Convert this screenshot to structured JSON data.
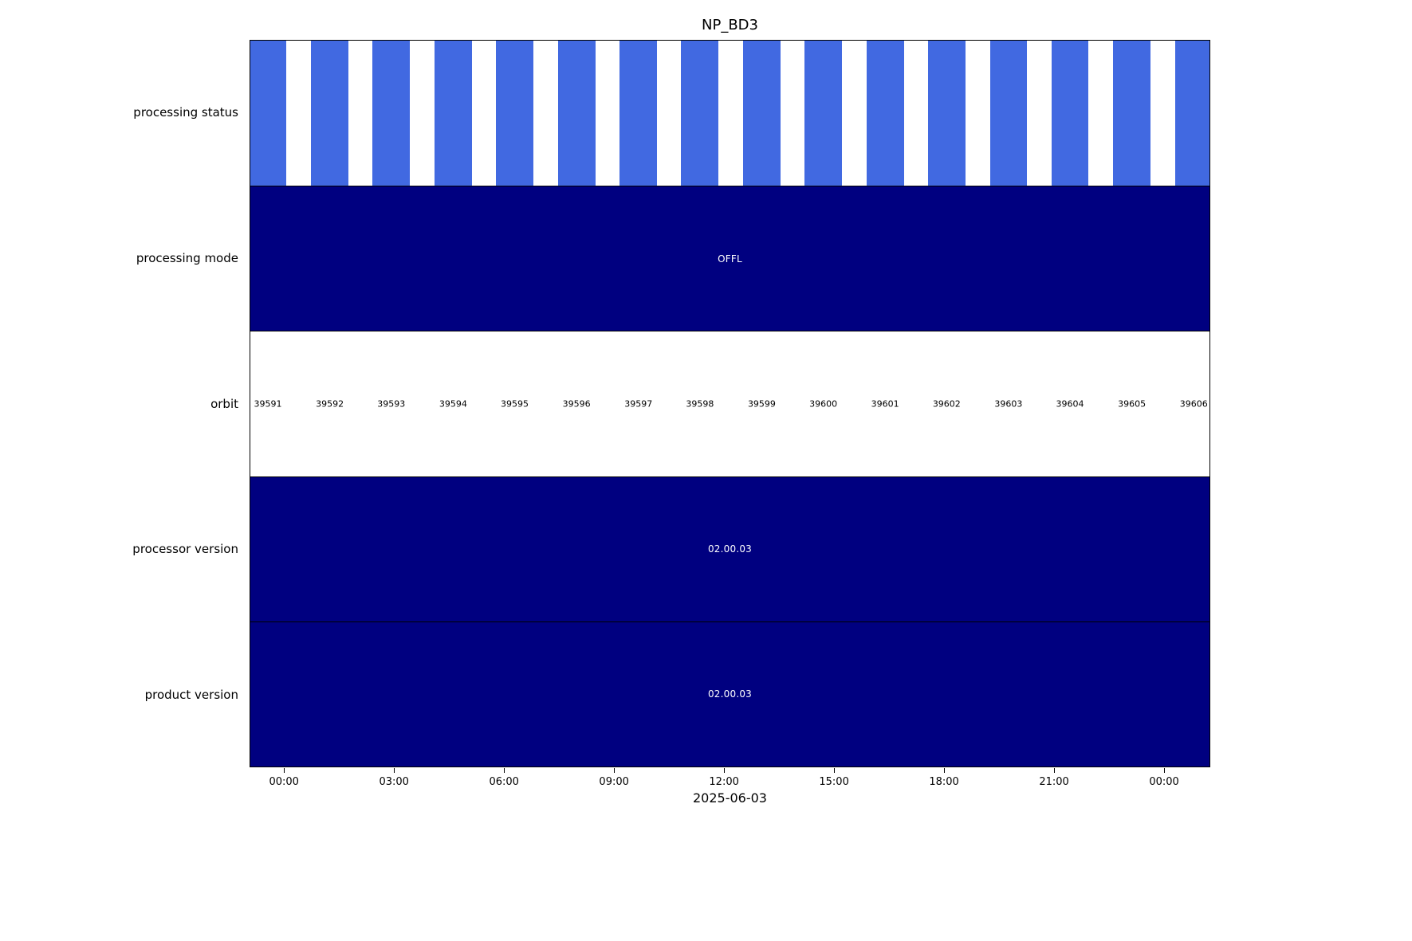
{
  "chart_data": {
    "type": "bar",
    "subtype": "timeline-status",
    "title": "NP_BD3",
    "xlabel": "2025-06-03",
    "time_domain_hours": [
      -0.94,
      25.26
    ],
    "x_ticks": [
      {
        "hour": 0,
        "label": "00:00"
      },
      {
        "hour": 3,
        "label": "03:00"
      },
      {
        "hour": 6,
        "label": "06:00"
      },
      {
        "hour": 9,
        "label": "09:00"
      },
      {
        "hour": 12,
        "label": "12:00"
      },
      {
        "hour": 15,
        "label": "15:00"
      },
      {
        "hour": 18,
        "label": "18:00"
      },
      {
        "hour": 21,
        "label": "21:00"
      },
      {
        "hour": 24,
        "label": "00:00"
      }
    ],
    "rows": [
      {
        "label": "processing status",
        "type": "bars"
      },
      {
        "label": "processing mode",
        "type": "solid",
        "value": "OFFL"
      },
      {
        "label": "orbit",
        "type": "orbit-labels"
      },
      {
        "label": "processor version",
        "type": "solid",
        "value": "02.00.03"
      },
      {
        "label": "product version",
        "type": "solid",
        "value": "02.00.03"
      }
    ],
    "orbits": [
      {
        "number": 39591,
        "center_hour": -0.46
      },
      {
        "number": 39592,
        "center_hour": 1.23
      },
      {
        "number": 39593,
        "center_hour": 2.91
      },
      {
        "number": 39594,
        "center_hour": 4.6
      },
      {
        "number": 39595,
        "center_hour": 6.28
      },
      {
        "number": 39596,
        "center_hour": 7.97
      },
      {
        "number": 39597,
        "center_hour": 9.66
      },
      {
        "number": 39598,
        "center_hour": 11.34
      },
      {
        "number": 39599,
        "center_hour": 13.03
      },
      {
        "number": 39600,
        "center_hour": 14.71
      },
      {
        "number": 39601,
        "center_hour": 16.4
      },
      {
        "number": 39602,
        "center_hour": 18.08
      },
      {
        "number": 39603,
        "center_hour": 19.77
      },
      {
        "number": 39604,
        "center_hour": 21.45
      },
      {
        "number": 39605,
        "center_hour": 23.14
      },
      {
        "number": 39606,
        "center_hour": 24.83
      }
    ],
    "status_bar_halfwidth_hours": 0.51,
    "colors": {
      "status_bar": "#4169e1",
      "solid_row": "#000080",
      "solid_row_text": "#ffffff",
      "orbit_text": "#000000",
      "frame": "#000000",
      "background": "#ffffff"
    },
    "legend": null,
    "grid": false
  }
}
